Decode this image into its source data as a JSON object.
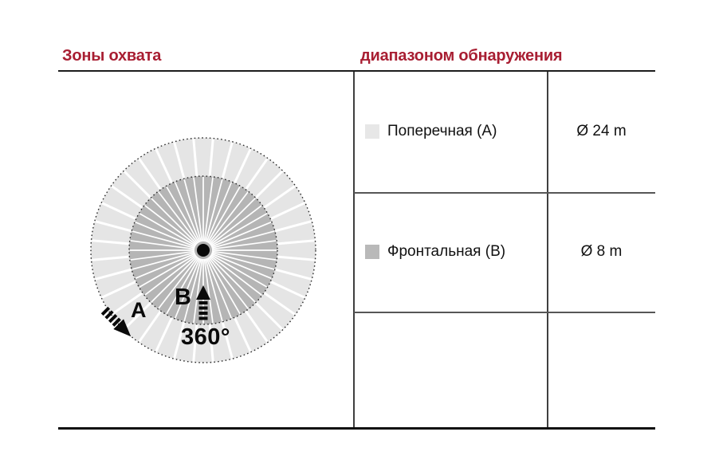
{
  "headers": {
    "left": "Зоны охвата",
    "right": "диапазоном обнаружения",
    "color": "#a81e32"
  },
  "diagram": {
    "label_a": "A",
    "label_b": "B",
    "angle_label": "360°",
    "outer_zone_color": "#e5e5e5",
    "inner_zone_color": "#b5b5b5",
    "outer_sectors": 36,
    "inner_rays": 48,
    "dot_color": "#0a0a0a",
    "dash_color": "#2b2b2b"
  },
  "table": {
    "rows": [
      {
        "swatch_color": "#e7e7e7",
        "label": "Поперечная (А)",
        "value": "Ø 24 m"
      },
      {
        "swatch_color": "#b9b9b9",
        "label": "Фронтальная (В)",
        "value": "Ø 8 m"
      }
    ]
  }
}
